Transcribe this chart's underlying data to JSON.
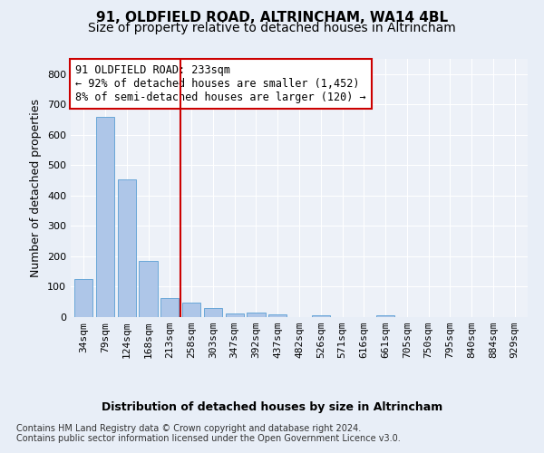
{
  "title": "91, OLDFIELD ROAD, ALTRINCHAM, WA14 4BL",
  "subtitle": "Size of property relative to detached houses in Altrincham",
  "xlabel": "Distribution of detached houses by size in Altrincham",
  "ylabel": "Number of detached properties",
  "categories": [
    "34sqm",
    "79sqm",
    "124sqm",
    "168sqm",
    "213sqm",
    "258sqm",
    "303sqm",
    "347sqm",
    "392sqm",
    "437sqm",
    "482sqm",
    "526sqm",
    "571sqm",
    "616sqm",
    "661sqm",
    "705sqm",
    "750sqm",
    "795sqm",
    "840sqm",
    "884sqm",
    "929sqm"
  ],
  "values": [
    125,
    660,
    452,
    184,
    62,
    48,
    30,
    13,
    15,
    10,
    0,
    6,
    0,
    0,
    7,
    0,
    0,
    0,
    0,
    0,
    0
  ],
  "bar_color": "#aec6e8",
  "bar_edge_color": "#5a9fd4",
  "vline_x_index": 4.5,
  "vline_color": "#cc0000",
  "annotation_line1": "91 OLDFIELD ROAD: 233sqm",
  "annotation_line2": "← 92% of detached houses are smaller (1,452)",
  "annotation_line3": "8% of semi-detached houses are larger (120) →",
  "annotation_box_color": "#cc0000",
  "ylim": [
    0,
    850
  ],
  "yticks": [
    0,
    100,
    200,
    300,
    400,
    500,
    600,
    700,
    800
  ],
  "footer_line1": "Contains HM Land Registry data © Crown copyright and database right 2024.",
  "footer_line2": "Contains public sector information licensed under the Open Government Licence v3.0.",
  "bg_color": "#e8eef7",
  "plot_bg_color": "#edf1f8",
  "title_fontsize": 11,
  "subtitle_fontsize": 10,
  "axis_label_fontsize": 9,
  "tick_fontsize": 8,
  "annotation_fontsize": 8.5,
  "footer_fontsize": 7
}
